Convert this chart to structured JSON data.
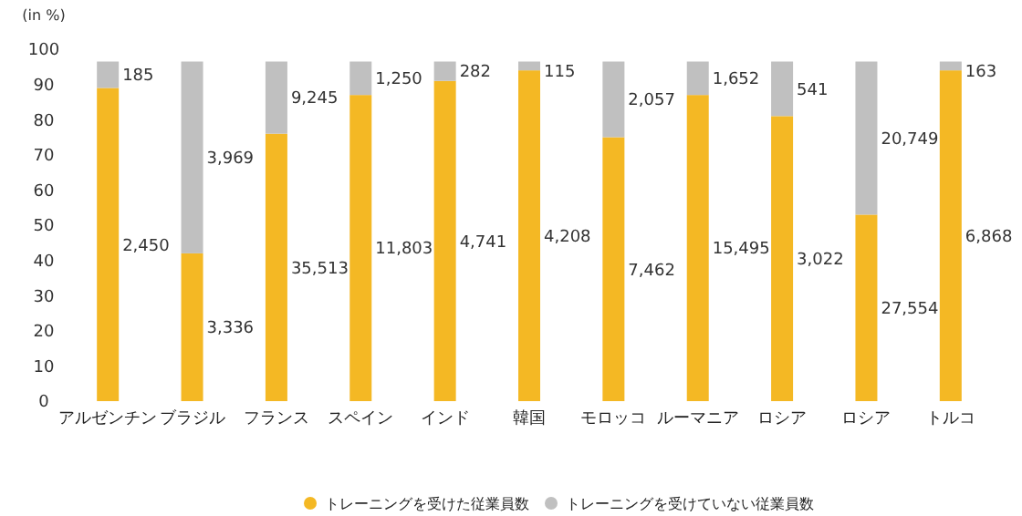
{
  "chart_data": {
    "type": "bar",
    "stacked": true,
    "ylabel": "(in %)",
    "categories": [
      "アルゼンチン",
      "ブラジル",
      "フランス",
      "スペイン",
      "インド",
      "韓国",
      "モロッコ",
      "ルーマニア",
      "ロシア",
      "ロシア",
      "トルコ"
    ],
    "series": [
      {
        "name": "トレーニングを受けた従業員数",
        "color": "#f4b824",
        "values": [
          89,
          42,
          76,
          87,
          91,
          94,
          75,
          87,
          81,
          53,
          94
        ]
      },
      {
        "name": "トレーニングを受けていない従業員数",
        "color": "#c0c0c0",
        "values": [
          7.5,
          54.5,
          20.5,
          9.5,
          5.5,
          2.5,
          21.5,
          9.5,
          15.5,
          43.5,
          2.5
        ]
      }
    ],
    "annotations": [
      "2,450",
      "185",
      "3,336",
      "3,969",
      "35,513",
      "9,245",
      "11,803",
      "1,250",
      "4,741",
      "282",
      "4,208",
      "115",
      "7,462",
      "2,057",
      "15,495",
      "1,652",
      "3,022",
      "541",
      "27,554",
      "20,749",
      "6,868",
      "163"
    ],
    "ylim": [
      0,
      100
    ],
    "yticks": [
      0,
      10,
      20,
      30,
      40,
      50,
      60,
      70,
      80,
      90,
      100
    ],
    "legend": "bottom",
    "marker": "circle"
  }
}
